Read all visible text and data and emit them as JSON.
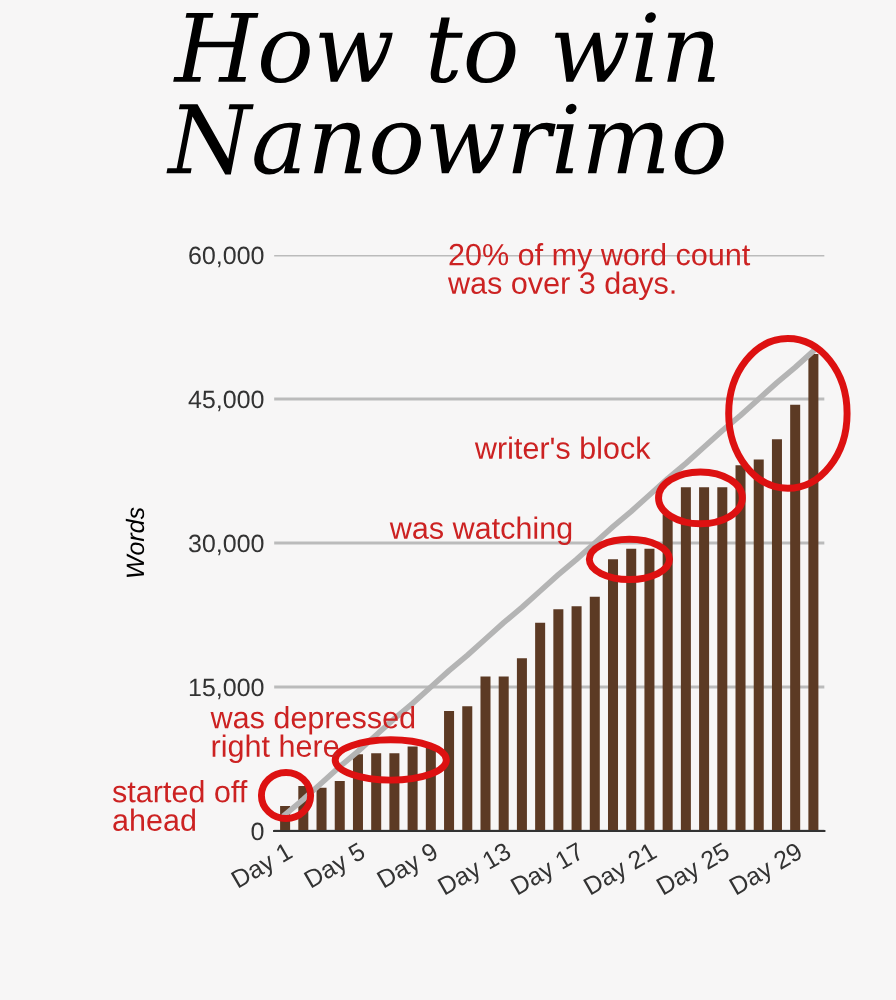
{
  "chart_data": {
    "type": "bar",
    "title": "How to win\nNanowrimo",
    "ylabel": "Words",
    "categories": [
      "Day 1",
      null,
      null,
      null,
      "Day 5",
      null,
      null,
      null,
      "Day 9",
      null,
      null,
      null,
      "Day 13",
      null,
      null,
      null,
      "Day 17",
      null,
      null,
      null,
      "Day 21",
      null,
      null,
      null,
      "Day 25",
      null,
      null,
      null,
      "Day 29",
      null
    ],
    "series": [
      {
        "color": "#5c3a24",
        "values": [
          2600,
          4700,
          4500,
          5200,
          8000,
          8100,
          8100,
          8800,
          8800,
          12500,
          13000,
          16100,
          16100,
          18000,
          21700,
          23100,
          23400,
          24400,
          28300,
          29400,
          29400,
          33000,
          35800,
          35800,
          35800,
          38100,
          38700,
          40800,
          44400,
          49700
        ]
      },
      {
        "type": "line",
        "color": "#b4b4b4",
        "values": [
          1700,
          3300,
          5000,
          6700,
          8300,
          10000,
          11700,
          13300,
          15000,
          16700,
          18300,
          20000,
          21700,
          23300,
          25000,
          26700,
          28300,
          30000,
          31700,
          33300,
          35000,
          36700,
          38300,
          40000,
          41700,
          43300,
          45000,
          46700,
          48300,
          50000
        ]
      }
    ],
    "ylim": [
      0,
      60000
    ],
    "yticks": [
      0,
      {
        "value": 15000,
        "label": "15,000"
      },
      {
        "value": 30000,
        "label": "30,000"
      },
      {
        "value": 45000,
        "label": "45,000"
      },
      {
        "value": 60000,
        "label": "60,000"
      }
    ],
    "grid": "y",
    "legend": false,
    "annotations": [
      "20% of my word count\nwas over 3 days.",
      "writer's block",
      "was watching",
      "was depressed\nright here",
      "started off\nahead"
    ]
  }
}
